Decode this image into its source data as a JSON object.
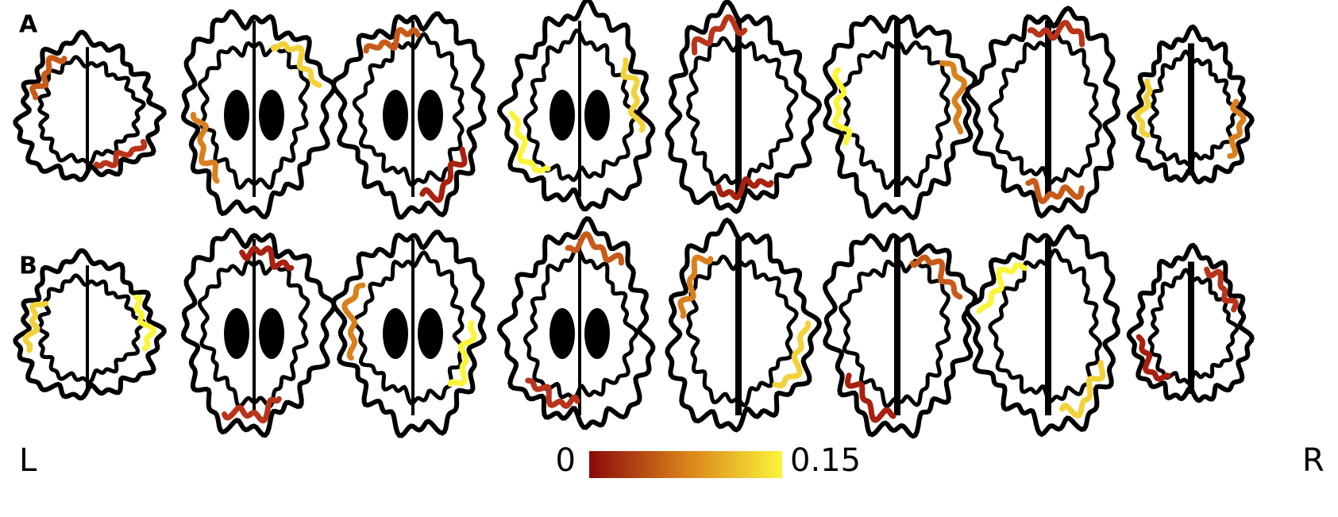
{
  "panels": [
    {
      "label": "A"
    },
    {
      "label": "B"
    }
  ],
  "sides": {
    "left": "L",
    "right": "R"
  },
  "colorbar": {
    "min": 0,
    "max": 0.15
  }
}
